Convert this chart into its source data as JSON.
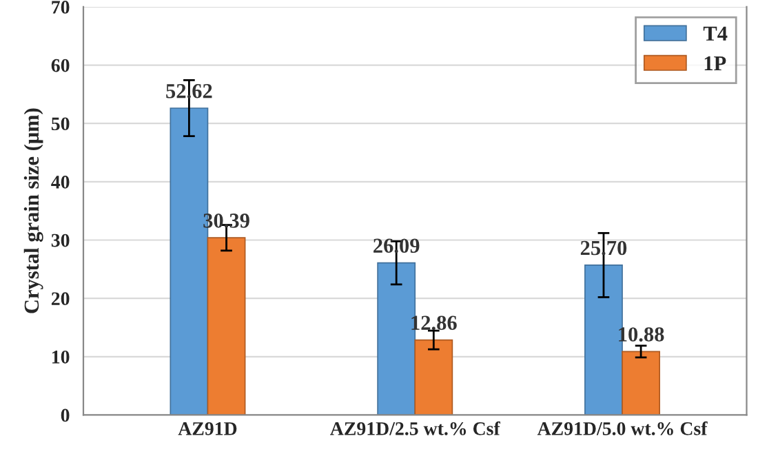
{
  "chart_data": {
    "type": "bar",
    "ylabel": "Crystal grain size (μm)",
    "categories": [
      "AZ91D",
      "AZ91D/2.5 wt.% Csf",
      "AZ91D/5.0 wt.% Csf"
    ],
    "series": [
      {
        "name": "T4",
        "color": "#5b9bd5",
        "values": [
          52.62,
          26.09,
          25.7
        ],
        "value_labels": [
          "52.62",
          "26.09",
          "25.70"
        ],
        "errors": [
          4.8,
          3.7,
          5.5
        ]
      },
      {
        "name": "1P",
        "color": "#ed7d31",
        "values": [
          30.39,
          12.86,
          10.88
        ],
        "value_labels": [
          "30.39",
          "12.86",
          "10.88"
        ],
        "errors": [
          2.2,
          1.6,
          1.0
        ]
      }
    ],
    "ylim": [
      0,
      70
    ],
    "yticks": [
      0,
      10,
      20,
      30,
      40,
      50,
      60,
      70
    ],
    "grid": "y",
    "legend": "top right"
  }
}
